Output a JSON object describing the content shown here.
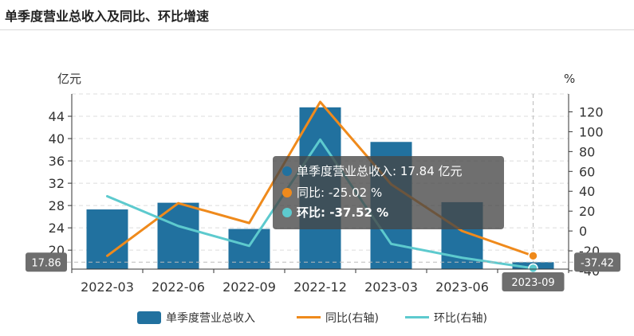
{
  "page": {
    "title": "单季度营业总收入及同比、环比增速"
  },
  "chart_data": {
    "type": "bar",
    "categories": [
      "2022-03",
      "2022-06",
      "2022-09",
      "2022-12",
      "2023-03",
      "2023-06",
      "2023-09"
    ],
    "series": [
      {
        "name": "单季度营业总收入",
        "type": "bar",
        "axis": "left",
        "color": "#21719f",
        "values": [
          27.3,
          28.5,
          23.8,
          45.6,
          39.4,
          28.6,
          17.84
        ]
      },
      {
        "name": "同比(右轴)",
        "type": "line",
        "axis": "right",
        "color": "#ef8a1c",
        "values": [
          -25.0,
          28.0,
          8.0,
          130.0,
          47.0,
          0.0,
          -25.02
        ]
      },
      {
        "name": "环比(右轴)",
        "type": "line",
        "axis": "right",
        "color": "#5dcace",
        "values": [
          35.0,
          5.0,
          -15.0,
          92.0,
          -13.0,
          -27.0,
          -37.52
        ]
      }
    ],
    "left_axis": {
      "unit": "亿元",
      "ticks": [
        20,
        24,
        28,
        32,
        36,
        40,
        44
      ],
      "range": [
        16.6,
        48
      ]
    },
    "right_axis": {
      "unit": "%",
      "ticks": [
        -40,
        -20,
        0,
        20,
        40,
        60,
        80,
        100,
        120
      ],
      "range": [
        -38.4,
        138
      ]
    },
    "grid": true,
    "axis_pointer": {
      "category": "2023-09",
      "left_value": "17.86",
      "right_value": "-37.42"
    },
    "tooltip": {
      "rows": [
        {
          "text": "单季度营业总收入: 17.84  亿元",
          "color": "#21719f",
          "bold": false
        },
        {
          "text": "同比: -25.02  %",
          "color": "#ef8a1c",
          "bold": false
        },
        {
          "text": "环比: -37.52  %",
          "color": "#5dcace",
          "bold": true
        }
      ]
    },
    "legend": {
      "position": "bottom",
      "items": [
        {
          "label": "单季度营业总收入",
          "kind": "bar",
          "color": "#21719f"
        },
        {
          "label": "同比(右轴)",
          "kind": "line",
          "color": "#ef8a1c"
        },
        {
          "label": "环比(右轴)",
          "kind": "line",
          "color": "#5dcace"
        }
      ]
    }
  }
}
